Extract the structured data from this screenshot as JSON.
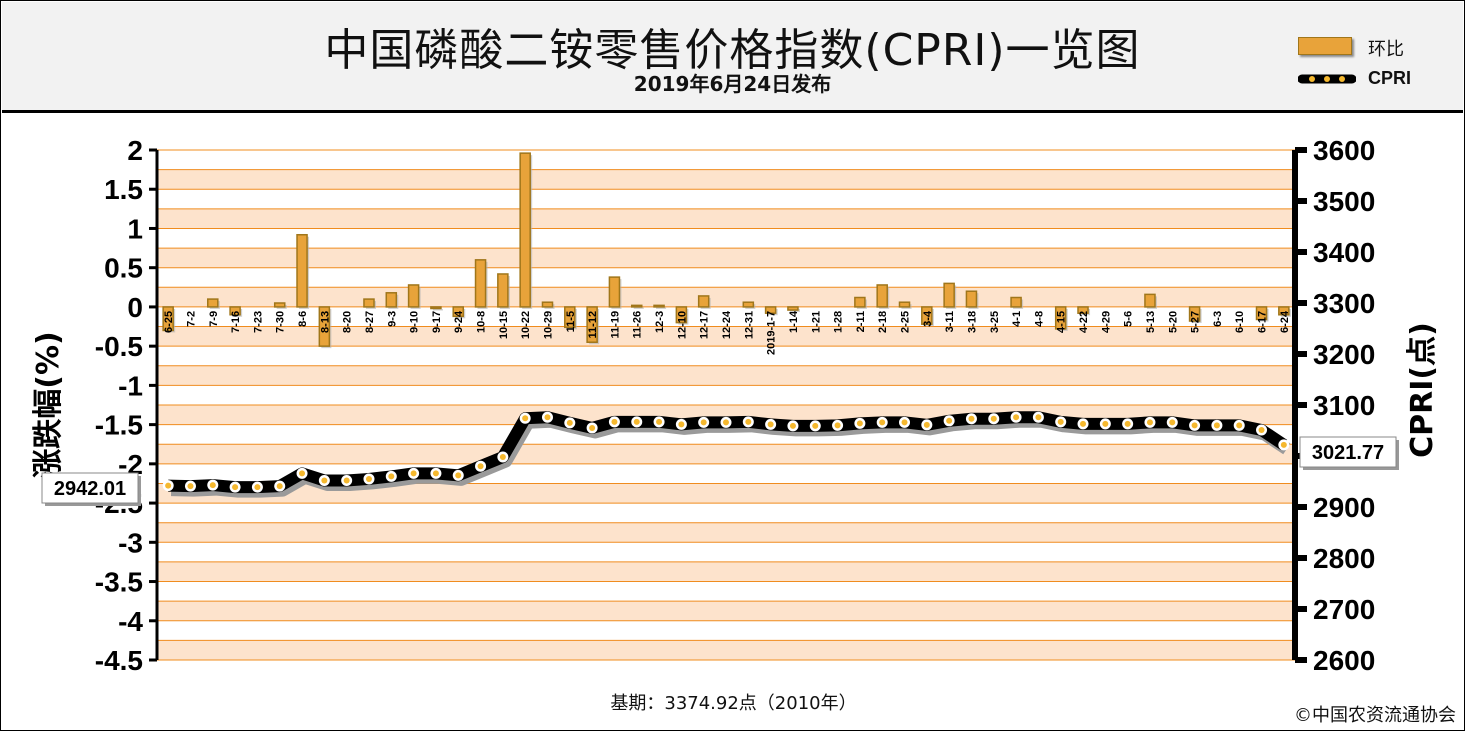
{
  "header": {
    "title": "中国磷酸二铵零售价格指数(CPRI)一览图",
    "subtitle": "2019年6月24日发布"
  },
  "legend": {
    "bar_label": "环比",
    "line_label": "CPRI"
  },
  "footer": {
    "base_note": "基期：3374.92点（2010年）",
    "copyright": "©中国农资流通协会"
  },
  "colors": {
    "bar": "#e8a33a",
    "bar_dark": "#a0761a",
    "band_light": "#fde3cc",
    "band_alt": "#ffffff",
    "grid": "#f08c1e",
    "line": "#000000",
    "marker": "#f5b82e"
  },
  "chart_data": {
    "type": "bar+line",
    "title": "中国磷酸二铵零售价格指数(CPRI)一览图",
    "ylabel_left": "涨跌幅(%)",
    "ylabel_right": "CPRI(点)",
    "ylim_left": [
      -4.5,
      2
    ],
    "yticks_left": [
      "2",
      "1.5",
      "1",
      "0.5",
      "0",
      "-0.5",
      "-1",
      "-1.5",
      "-2",
      "-2.5",
      "-3",
      "-3.5",
      "-4",
      "-4.5"
    ],
    "ylim_right": [
      2600,
      3600
    ],
    "yticks_right": [
      "3600",
      "3500",
      "3400",
      "3300",
      "3200",
      "3100",
      "3000",
      "2900",
      "2800",
      "2700",
      "2600"
    ],
    "categories": [
      "6-25",
      "7-2",
      "7-9",
      "7-16",
      "7-23",
      "7-30",
      "8-6",
      "8-13",
      "8-20",
      "8-27",
      "9-3",
      "9-10",
      "9-17",
      "9-24",
      "10-8",
      "10-15",
      "10-22",
      "10-29",
      "11-5",
      "11-12",
      "11-19",
      "11-26",
      "12-3",
      "12-10",
      "12-17",
      "12-24",
      "12-31",
      "2019-1-7",
      "1-14",
      "1-21",
      "1-28",
      "2-11",
      "2-18",
      "2-25",
      "3-4",
      "3-11",
      "3-18",
      "3-25",
      "4-1",
      "4-8",
      "4-15",
      "4-22",
      "4-29",
      "5-6",
      "5-13",
      "5-20",
      "5-27",
      "6-3",
      "6-10",
      "6-17",
      "6-24"
    ],
    "series": [
      {
        "name": "环比",
        "type": "bar",
        "values": [
          -0.3,
          0.0,
          0.1,
          -0.1,
          0.0,
          0.05,
          0.92,
          -0.5,
          0.0,
          0.1,
          0.18,
          0.28,
          -0.02,
          -0.12,
          0.6,
          0.42,
          1.96,
          0.06,
          -0.26,
          -0.45,
          0.38,
          0.02,
          0.02,
          -0.2,
          0.14,
          0.0,
          0.06,
          -0.08,
          -0.04,
          0.0,
          0.0,
          0.12,
          0.28,
          0.06,
          -0.22,
          0.3,
          0.2,
          0.0,
          0.12,
          0.0,
          -0.28,
          -0.08,
          0.0,
          0.0,
          0.16,
          0.0,
          -0.18,
          0.0,
          0.0,
          -0.16,
          -0.1
        ]
      },
      {
        "name": "CPRI",
        "type": "line",
        "values": [
          2942.01,
          2941,
          2943,
          2939,
          2939,
          2941,
          2966,
          2952,
          2952,
          2955,
          2960,
          2966,
          2966,
          2962,
          2980,
          2998,
          3074,
          3076,
          3065,
          3055,
          3067,
          3067,
          3067,
          3062,
          3066,
          3066,
          3067,
          3062,
          3059,
          3059,
          3060,
          3064,
          3066,
          3066,
          3061,
          3069,
          3073,
          3073,
          3076,
          3076,
          3067,
          3063,
          3063,
          3063,
          3066,
          3066,
          3060,
          3060,
          3060,
          3051,
          3021.77
        ]
      }
    ],
    "callouts": {
      "first": "2942.01",
      "last": "3021.77"
    }
  }
}
